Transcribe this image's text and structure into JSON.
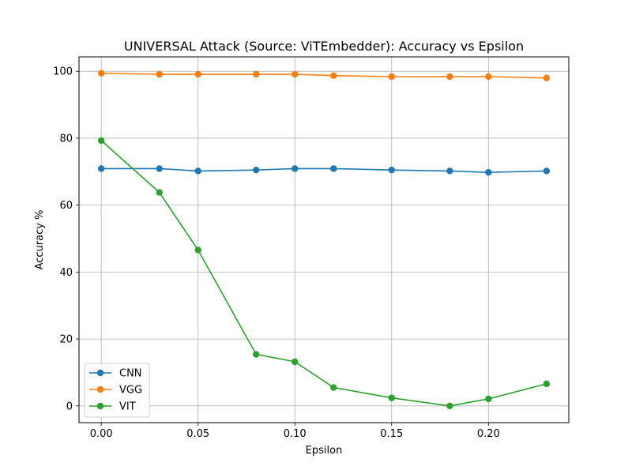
{
  "chart_data": {
    "type": "line",
    "title": "UNIVERSAL Attack (Source: ViTEmbedder): Accuracy vs Epsilon",
    "xlabel": "Epsilon",
    "ylabel": "Accuracy %",
    "x": [
      0.0,
      0.03,
      0.05,
      0.08,
      0.1,
      0.12,
      0.15,
      0.18,
      0.2,
      0.23
    ],
    "xlim": [
      -0.0115,
      0.2415
    ],
    "ylim": [
      -5,
      104.3
    ],
    "xticks": [
      0.0,
      0.05,
      0.1,
      0.15,
      0.2
    ],
    "xtick_labels": [
      "0.00",
      "0.05",
      "0.10",
      "0.15",
      "0.20"
    ],
    "yticks": [
      0,
      20,
      40,
      60,
      80,
      100
    ],
    "ytick_labels": [
      "0",
      "20",
      "40",
      "60",
      "80",
      "100"
    ],
    "grid": true,
    "legend_position": "lower-left",
    "series": [
      {
        "name": "CNN",
        "color": "#1f77b4",
        "values": [
          70.9,
          70.9,
          70.2,
          70.5,
          70.9,
          70.9,
          70.5,
          70.2,
          69.8,
          70.2
        ]
      },
      {
        "name": "VGG",
        "color": "#ff7f0e",
        "values": [
          99.4,
          99.1,
          99.1,
          99.1,
          99.1,
          98.7,
          98.4,
          98.4,
          98.4,
          98.0
        ]
      },
      {
        "name": "VIT",
        "color": "#2ca02c",
        "values": [
          79.3,
          63.8,
          46.6,
          15.4,
          13.2,
          5.5,
          2.4,
          0.0,
          2.1,
          6.6
        ]
      }
    ]
  }
}
